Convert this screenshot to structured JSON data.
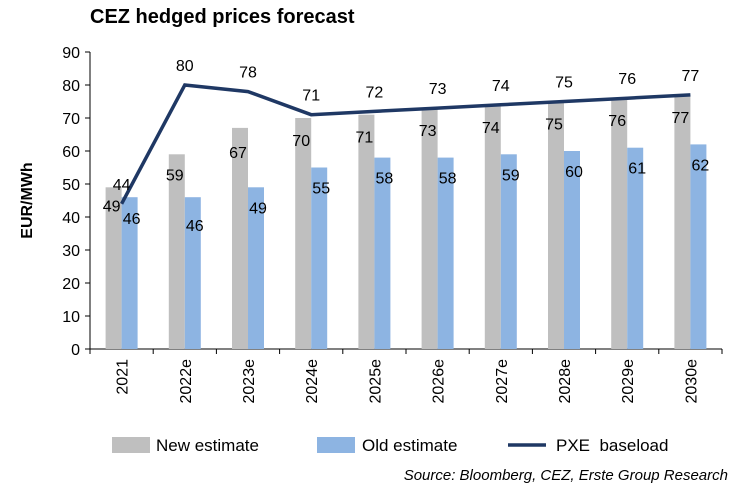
{
  "chart_data": {
    "type": "bar",
    "title": "CEZ hedged prices forecast",
    "ylabel": "EUR/MWh",
    "xlabel": "",
    "ylim": [
      0,
      90
    ],
    "yticks": [
      0,
      10,
      20,
      30,
      40,
      50,
      60,
      70,
      80,
      90
    ],
    "categories": [
      "2021",
      "2022e",
      "2023e",
      "2024e",
      "2025e",
      "2026e",
      "2027e",
      "2028e",
      "2029e",
      "2030e"
    ],
    "series": [
      {
        "name": "New estimate",
        "type": "bar",
        "color": "#BFBFBF",
        "values": [
          49,
          59,
          67,
          70,
          71,
          73,
          74,
          75,
          76,
          77
        ]
      },
      {
        "name": "Old estimate",
        "type": "bar",
        "color": "#8DB4E2",
        "values": [
          46,
          46,
          49,
          55,
          58,
          58,
          59,
          60,
          61,
          62
        ]
      },
      {
        "name": "PXE  baseload",
        "type": "line",
        "color": "#1F3864",
        "values": [
          44,
          80,
          78,
          71,
          72,
          73,
          74,
          75,
          76,
          77
        ]
      }
    ],
    "legend_position": "bottom",
    "grid": false
  },
  "source": "Source: Bloomberg, CEZ, Erste Group Research"
}
